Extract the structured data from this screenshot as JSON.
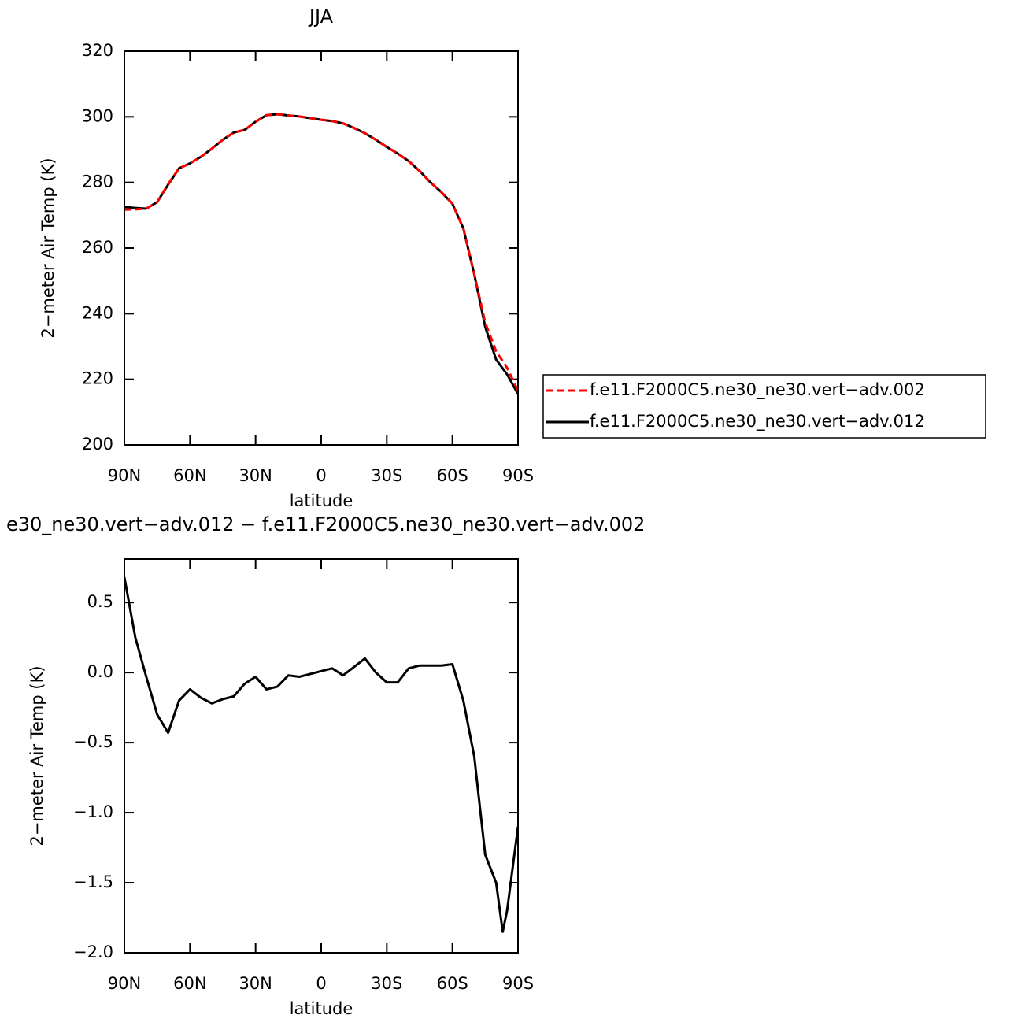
{
  "chart_data": [
    {
      "type": "line",
      "title": "JJA",
      "xlabel": "latitude",
      "ylabel": "2−meter Air Temp (K)",
      "x": [
        90,
        85,
        80,
        75,
        70,
        65,
        60,
        55,
        50,
        45,
        40,
        35,
        30,
        25,
        20,
        15,
        10,
        5,
        0,
        -5,
        -10,
        -15,
        -20,
        -25,
        -30,
        -35,
        -40,
        -45,
        -50,
        -55,
        -60,
        -65,
        -70,
        -75,
        -80,
        -85,
        -90
      ],
      "series": [
        {
          "name": "f.e11.F2000C5.ne30_ne30.vert−adv.002",
          "color": "#ff0000",
          "dash": true,
          "values": [
            271.7,
            271.8,
            272,
            274,
            279.5,
            284.3,
            285.8,
            287.8,
            290.3,
            293,
            295.2,
            296,
            298.5,
            300.5,
            300.8,
            300.4,
            300.1,
            299.6,
            299.1,
            298.7,
            298,
            296.6,
            295,
            293,
            290.8,
            288.8,
            286.5,
            283.5,
            280,
            277,
            273.5,
            266,
            252,
            237.3,
            228.5,
            223.5,
            216.5
          ]
        },
        {
          "name": "f.e11.F2000C5.ne30_ne30.vert−adv.012",
          "color": "#000000",
          "dash": false,
          "values": [
            272.5,
            272.2,
            272,
            274,
            279.3,
            284.3,
            285.8,
            287.8,
            290.3,
            293,
            295.2,
            296,
            298.5,
            300.5,
            300.8,
            300.4,
            300.1,
            299.6,
            299.1,
            298.7,
            298,
            296.6,
            295,
            293,
            290.8,
            288.8,
            286.5,
            283.5,
            280,
            277,
            273.5,
            266,
            252,
            236,
            226,
            221.5,
            215.5
          ]
        }
      ],
      "xlim": [
        90,
        -90
      ],
      "xticks": [
        {
          "value": 90,
          "label": "90N"
        },
        {
          "value": 60,
          "label": "60N"
        },
        {
          "value": 30,
          "label": "30N"
        },
        0,
        {
          "value": -30,
          "label": "30S"
        },
        {
          "value": -60,
          "label": "60S"
        },
        {
          "value": -90,
          "label": "90S"
        }
      ],
      "ylim": [
        200,
        320
      ],
      "yticks": [
        200,
        220,
        240,
        260,
        280,
        300,
        320
      ]
    },
    {
      "type": "line",
      "title": "e30_ne30.vert−adv.012 − f.e11.F2000C5.ne30_ne30.vert−adv.002",
      "xlabel": "latitude",
      "ylabel": "2−meter Air Temp (K)",
      "x": [
        90,
        85,
        80,
        75,
        70,
        65,
        60,
        55,
        50,
        45,
        40,
        35,
        30,
        25,
        20,
        15,
        10,
        5,
        0,
        -5,
        -10,
        -15,
        -20,
        -25,
        -30,
        -35,
        -40,
        -45,
        -50,
        -55,
        -60,
        -65,
        -70,
        -75,
        -80,
        -83,
        -85,
        -90
      ],
      "series": [
        {
          "color": "#000000",
          "values": [
            0.68,
            0.25,
            -0.03,
            -0.3,
            -0.43,
            -0.2,
            -0.12,
            -0.18,
            -0.22,
            -0.19,
            -0.17,
            -0.08,
            -0.03,
            -0.12,
            -0.1,
            -0.02,
            -0.03,
            -0.01,
            0.01,
            0.03,
            -0.02,
            0.04,
            0.1,
            0.0,
            -0.07,
            -0.07,
            0.03,
            0.05,
            0.05,
            0.05,
            0.06,
            -0.2,
            -0.6,
            -1.3,
            -1.5,
            -1.85,
            -1.7,
            -1.1
          ]
        }
      ],
      "xlim": [
        90,
        -90
      ],
      "xticks": [
        {
          "value": 90,
          "label": "90N"
        },
        {
          "value": 60,
          "label": "60N"
        },
        {
          "value": 30,
          "label": "30N"
        },
        0,
        {
          "value": -30,
          "label": "30S"
        },
        {
          "value": -60,
          "label": "60S"
        },
        {
          "value": -90,
          "label": "90S"
        }
      ],
      "ylim": [
        -2.0,
        0.81
      ],
      "yticks": [
        {
          "value": -2.0,
          "label": "−2.0"
        },
        {
          "value": -1.5,
          "label": "−1.5"
        },
        {
          "value": -1.0,
          "label": "−1.0"
        },
        {
          "value": -0.5,
          "label": "−0.5"
        },
        {
          "value": 0,
          "label": "0.0"
        },
        0.5
      ]
    }
  ]
}
